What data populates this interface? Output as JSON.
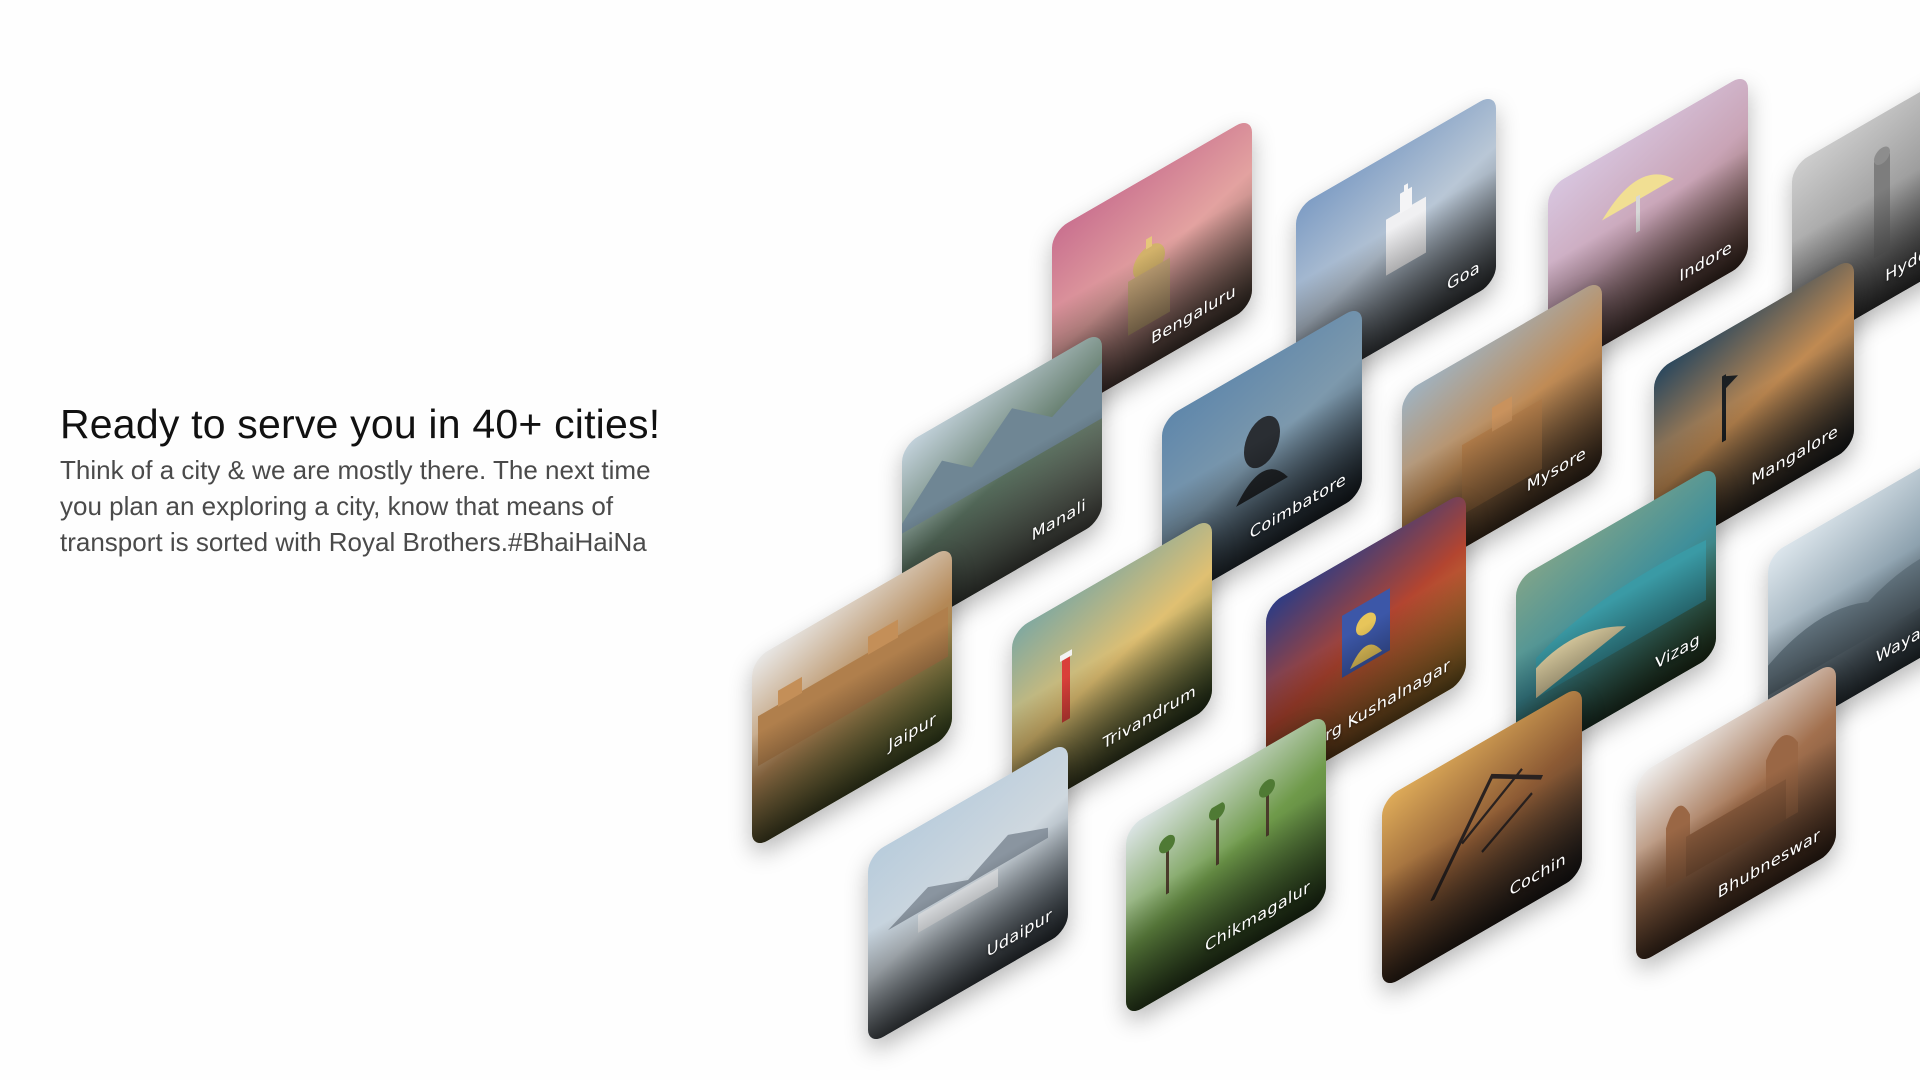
{
  "intro": {
    "title": "Ready to serve you in 40+ cities!",
    "lines": [
      "Think of a city & we are mostly there. The next time",
      "you plan an exploring a city, know that means of",
      "transport is sorted with Royal Brothers.#BhaiHaiNa"
    ]
  },
  "cities": [
    {
      "name": "Bengaluru",
      "colors": [
        "#c9708f",
        "#e3a2a0",
        "#6b5a4c"
      ]
    },
    {
      "name": "Goa",
      "colors": [
        "#7d9cc4",
        "#b9c7d6",
        "#5a5f63"
      ]
    },
    {
      "name": "Indore",
      "colors": [
        "#d8c6e0",
        "#c9a4b6",
        "#6c4a3a"
      ]
    },
    {
      "name": "Hyderabad",
      "colors": [
        "#cfcfcf",
        "#9c9c9c",
        "#4a4a4a"
      ]
    },
    {
      "name": "Manali",
      "colors": [
        "#c5d4de",
        "#5f7866",
        "#8a8a80"
      ]
    },
    {
      "name": "Coimbatore",
      "colors": [
        "#5f87ab",
        "#7d99ad",
        "#2b3640"
      ]
    },
    {
      "name": "Mysore",
      "colors": [
        "#9fb3c2",
        "#c08b55",
        "#5d4530"
      ]
    },
    {
      "name": "Mangalore",
      "colors": [
        "#27465e",
        "#c08a52",
        "#2a2f33"
      ]
    },
    {
      "name": "Jaipur",
      "colors": [
        "#eaeaea",
        "#b48856",
        "#6e8a3e"
      ]
    },
    {
      "name": "Trivandrum",
      "colors": [
        "#7ea8a1",
        "#e0c072",
        "#3f5a2c"
      ]
    },
    {
      "name": "Coorg Kushalnagar",
      "colors": [
        "#2b3c86",
        "#b34530",
        "#d8a43a"
      ]
    },
    {
      "name": "Vizag",
      "colors": [
        "#7fa48a",
        "#3f8f9a",
        "#3d5b2f"
      ]
    },
    {
      "name": "Wayanad",
      "colors": [
        "#dfe8ee",
        "#8fa3b0",
        "#3e4e58"
      ]
    },
    {
      "name": "Udaipur",
      "colors": [
        "#b8ccdc",
        "#cfd8df",
        "#4d5964"
      ]
    },
    {
      "name": "Chikmagalur",
      "colors": [
        "#dfe7ea",
        "#6f9a4a",
        "#3b5a2a"
      ]
    },
    {
      "name": "Cochin",
      "colors": [
        "#e0ad5a",
        "#8c5a34",
        "#2d2a2a"
      ]
    },
    {
      "name": "Bhubneswar",
      "colors": [
        "#f1f1f1",
        "#a2704e",
        "#5d3d2a"
      ]
    }
  ]
}
